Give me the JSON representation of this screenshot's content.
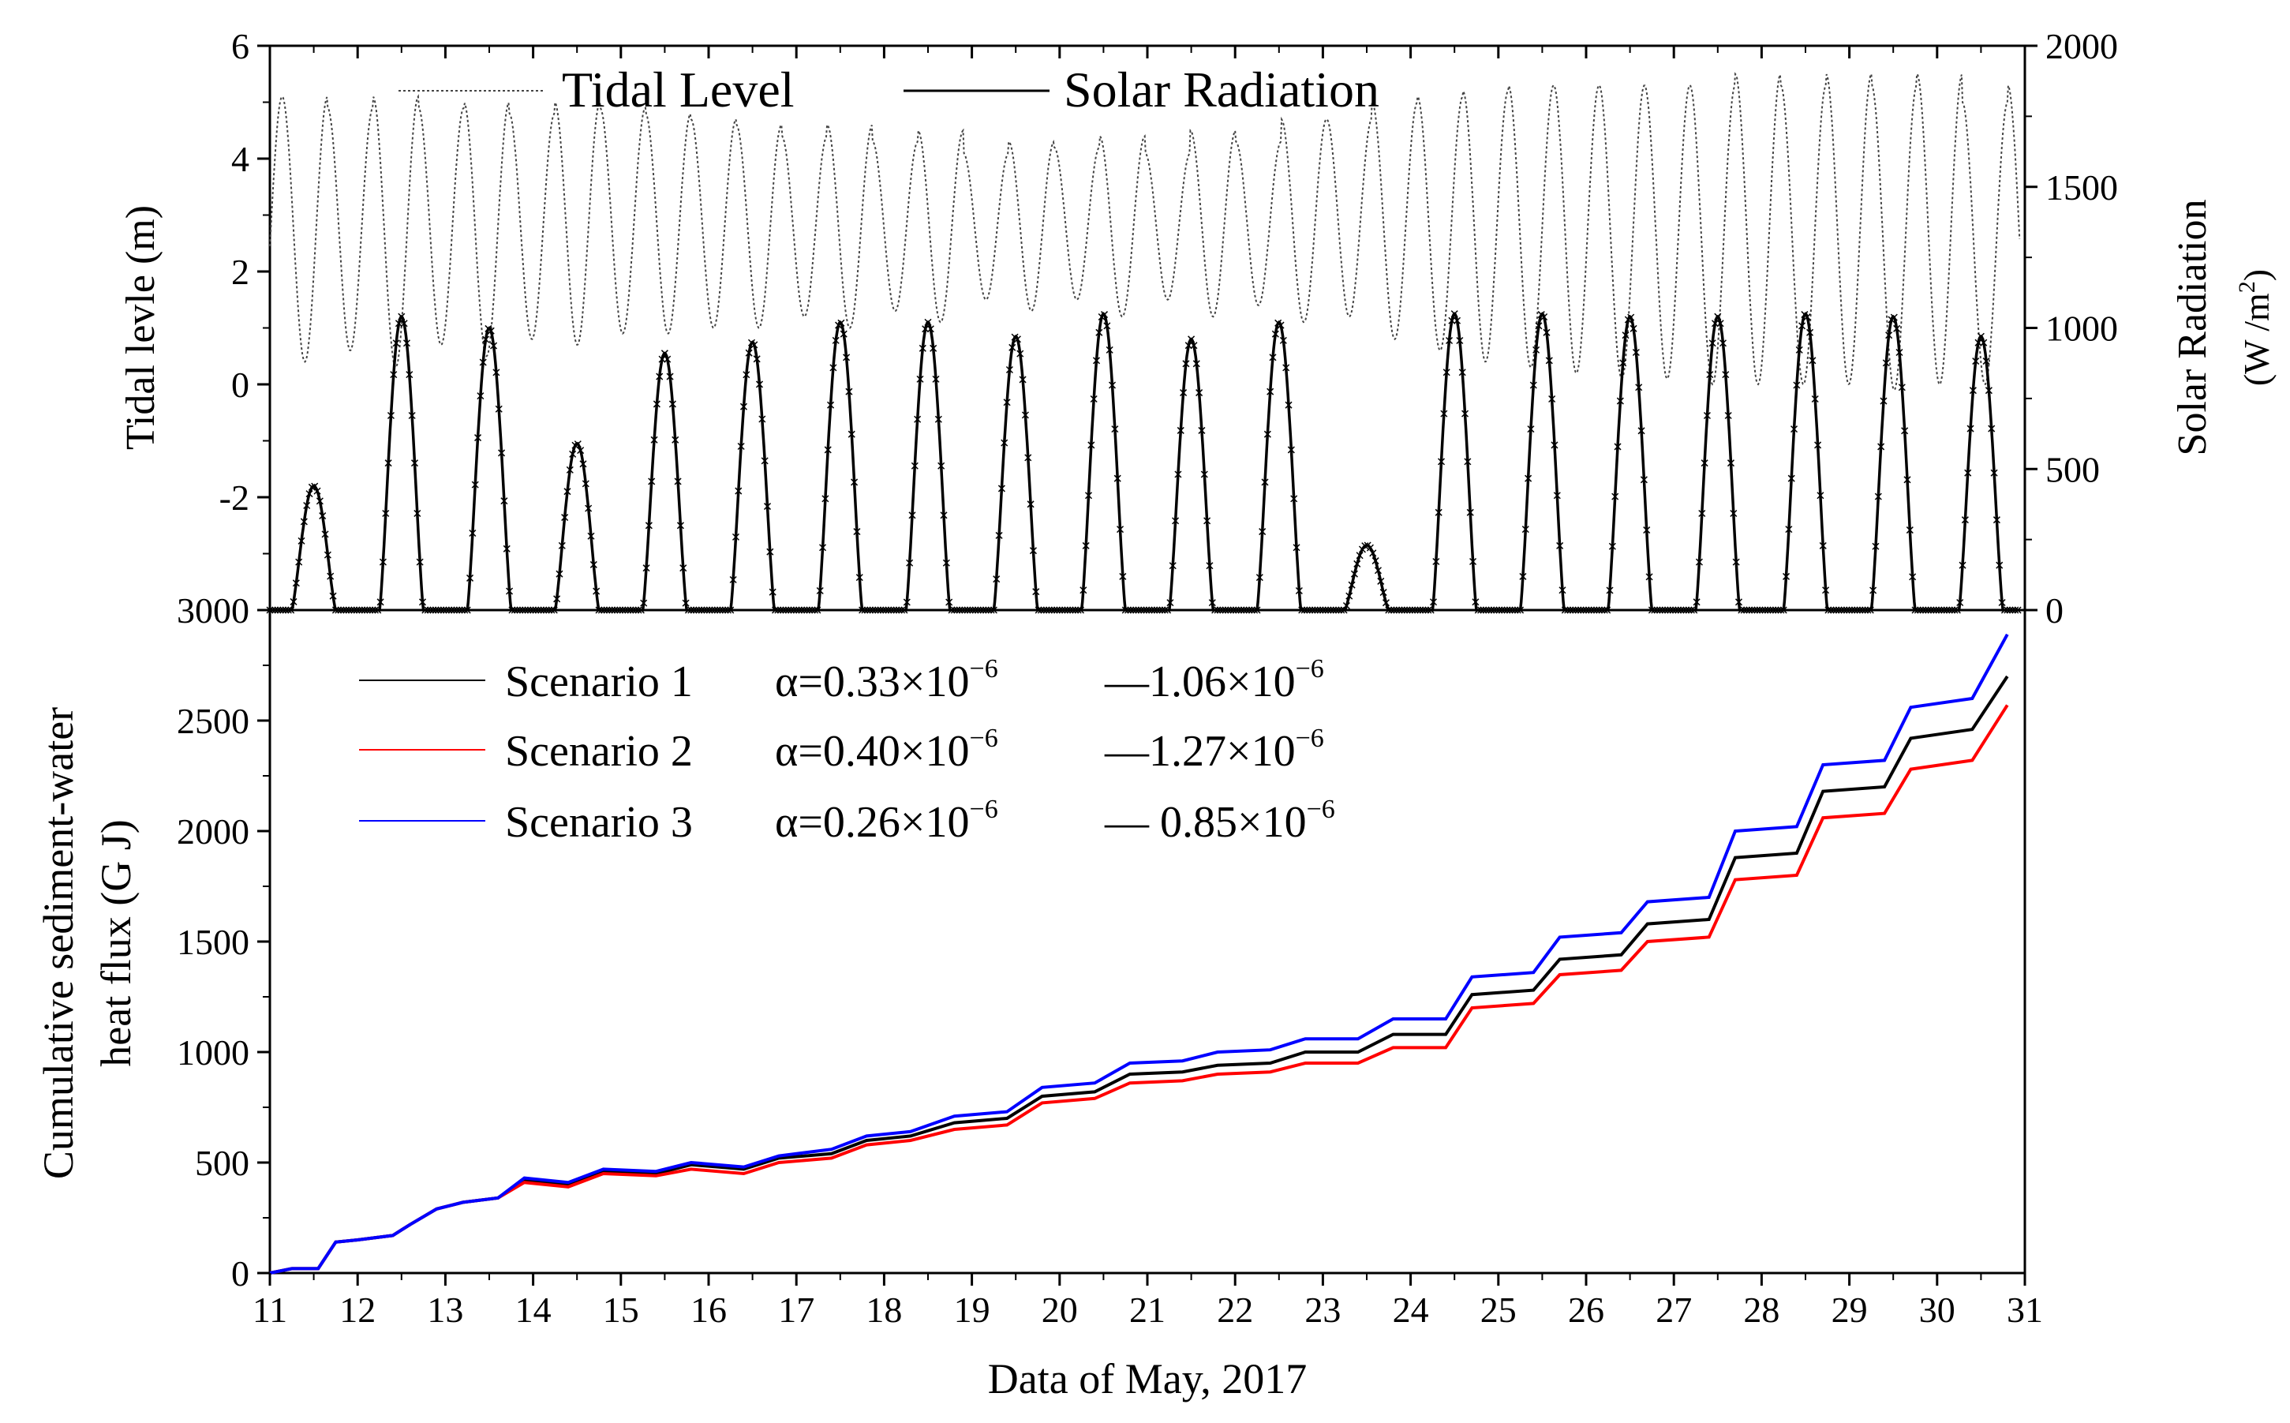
{
  "chart_data": [
    {
      "type": "line",
      "panel": "top",
      "title": "",
      "xlabel": "",
      "ylabel_left": "Tidal levle (m)",
      "ylabel_right": "Solar Radiation",
      "ylabel_right_unit": "(W /m",
      "ylabel_right_unit_exp": "2",
      "ylabel_right_unit_close": ")",
      "xlim": [
        11,
        31
      ],
      "ylim_left": [
        -4,
        6
      ],
      "ylim_right": [
        0,
        2000
      ],
      "yticks_left": [
        0,
        2,
        4,
        6,
        -2
      ],
      "yticks_left_labels": [
        "0",
        "2",
        "4",
        "6",
        "-2"
      ],
      "yticks_right": [
        0,
        500,
        1000,
        1500,
        2000
      ],
      "yticks_right_labels": [
        "0",
        "500",
        "1000",
        "1500",
        "2000"
      ],
      "legend": {
        "placement": "top",
        "entries": [
          "Tidal Level",
          "Solar Radiation"
        ]
      },
      "series": [
        {
          "name": "Tidal Level",
          "axis": "left",
          "style": "dotted",
          "mean_level": 2.7,
          "period_days": 0.5175,
          "high_tides": [
            5.1,
            4.9,
            5.1,
            4.9,
            5.0,
            4.8,
            5.0,
            4.9,
            4.8,
            4.7,
            4.6,
            4.4,
            4.6,
            4.3,
            4.5,
            4.1,
            4.3,
            4.2,
            4.4,
            4.1,
            4.5,
            4.3,
            4.7,
            4.7,
            5.0,
            5.1,
            5.2,
            5.3,
            5.3,
            5.3,
            5.3,
            5.3,
            5.5,
            5.3,
            5.5,
            5.3,
            5.5,
            5.0,
            5.3,
            3.3
          ],
          "low_tides": [
            0.4,
            0.6,
            0.3,
            0.7,
            0.5,
            0.8,
            0.7,
            0.9,
            0.9,
            1.0,
            1.0,
            1.2,
            1.0,
            1.3,
            1.1,
            1.5,
            1.3,
            1.5,
            1.2,
            1.5,
            1.2,
            1.4,
            1.1,
            1.2,
            0.8,
            0.6,
            0.4,
            0.3,
            0.2,
            0.1,
            0.1,
            0.0,
            0.0,
            0.0,
            0.0,
            -0.1,
            0.0,
            0.0,
            0.2,
            0.6
          ]
        },
        {
          "name": "Solar Radiation",
          "axis": "right",
          "style": "solid-with-cross-markers",
          "days": [
            11,
            12,
            13,
            14,
            15,
            16,
            17,
            18,
            19,
            20,
            21,
            22,
            23,
            24,
            25,
            26,
            27,
            28,
            29,
            30
          ],
          "daily_peak_w_m2": [
            440,
            1040,
            1000,
            590,
            910,
            950,
            1020,
            1020,
            970,
            1050,
            960,
            1020,
            230,
            1050,
            1050,
            1040,
            1040,
            1050,
            1040,
            970
          ]
        }
      ]
    },
    {
      "type": "line",
      "panel": "bottom",
      "title": "",
      "xlabel": "Data of May, 2017",
      "ylabel": [
        "Cumulative sediment-water",
        "heat flux (G J)"
      ],
      "xlim": [
        11,
        31
      ],
      "ylim": [
        0,
        3000
      ],
      "xticks": [
        11,
        12,
        13,
        14,
        15,
        16,
        17,
        18,
        19,
        20,
        21,
        22,
        23,
        24,
        25,
        26,
        27,
        28,
        29,
        30,
        31
      ],
      "xtick_labels": [
        "11",
        "12",
        "13",
        "14",
        "15",
        "16",
        "17",
        "18",
        "19",
        "20",
        "21",
        "22",
        "23",
        "24",
        "25",
        "26",
        "27",
        "28",
        "29",
        "30",
        "31"
      ],
      "yticks": [
        0,
        500,
        1000,
        1500,
        2000,
        2500,
        3000
      ],
      "ytick_labels": [
        "0",
        "500",
        "1000",
        "1500",
        "2000",
        "2500",
        "3000"
      ],
      "legend": {
        "placement": "top-left"
      },
      "series": [
        {
          "name": "Scenario 1",
          "color": "#000000",
          "alpha_text": "α=0.33×10",
          "alpha_exp": "−6",
          "dash_text": "—1.06×10",
          "dash_exp": "−6",
          "x": [
            11,
            11.25,
            11.55,
            11.75,
            12,
            12.4,
            12.6,
            12.9,
            13.2,
            13.6,
            13.9,
            14.4,
            14.8,
            15.4,
            15.8,
            16.4,
            16.8,
            17.4,
            17.8,
            18.3,
            18.8,
            19.4,
            19.8,
            20.4,
            20.8,
            21.4,
            21.8,
            22.4,
            22.8,
            23.4,
            23.8,
            24.4,
            24.7,
            25.4,
            25.7,
            26.4,
            26.7,
            27.4,
            27.7,
            28.4,
            28.7,
            29.4,
            29.7,
            30.4,
            30.8
          ],
          "values": [
            0,
            20,
            20,
            140,
            150,
            170,
            220,
            290,
            320,
            340,
            420,
            400,
            460,
            450,
            490,
            470,
            520,
            540,
            600,
            620,
            680,
            700,
            800,
            820,
            900,
            910,
            940,
            950,
            1000,
            1000,
            1080,
            1080,
            1260,
            1280,
            1420,
            1440,
            1580,
            1600,
            1880,
            1900,
            2180,
            2200,
            2420,
            2460,
            2700
          ]
        },
        {
          "name": "Scenario 2",
          "color": "#ff0000",
          "alpha_text": "α=0.40×10",
          "alpha_exp": "−6",
          "dash_text": "—1.27×10",
          "dash_exp": "−6",
          "x": [
            11,
            11.25,
            11.55,
            11.75,
            12,
            12.4,
            12.6,
            12.9,
            13.2,
            13.6,
            13.9,
            14.4,
            14.8,
            15.4,
            15.8,
            16.4,
            16.8,
            17.4,
            17.8,
            18.3,
            18.8,
            19.4,
            19.8,
            20.4,
            20.8,
            21.4,
            21.8,
            22.4,
            22.8,
            23.4,
            23.8,
            24.4,
            24.7,
            25.4,
            25.7,
            26.4,
            26.7,
            27.4,
            27.7,
            28.4,
            28.7,
            29.4,
            29.7,
            30.4,
            30.8
          ],
          "values": [
            0,
            20,
            20,
            140,
            150,
            170,
            220,
            290,
            320,
            340,
            410,
            390,
            450,
            440,
            470,
            450,
            500,
            520,
            580,
            600,
            650,
            670,
            770,
            790,
            860,
            870,
            900,
            910,
            950,
            950,
            1020,
            1020,
            1200,
            1220,
            1350,
            1370,
            1500,
            1520,
            1780,
            1800,
            2060,
            2080,
            2280,
            2320,
            2570
          ]
        },
        {
          "name": "Scenario 3",
          "color": "#0000ff",
          "alpha_text": "α=0.26×10",
          "alpha_exp": "−6",
          "dash_text": "— 0.85×10",
          "dash_exp": "−6",
          "x": [
            11,
            11.25,
            11.55,
            11.75,
            12,
            12.4,
            12.6,
            12.9,
            13.2,
            13.6,
            13.9,
            14.4,
            14.8,
            15.4,
            15.8,
            16.4,
            16.8,
            17.4,
            17.8,
            18.3,
            18.8,
            19.4,
            19.8,
            20.4,
            20.8,
            21.4,
            21.8,
            22.4,
            22.8,
            23.4,
            23.8,
            24.4,
            24.7,
            25.4,
            25.7,
            26.4,
            26.7,
            27.4,
            27.7,
            28.4,
            28.7,
            29.4,
            29.7,
            30.4,
            30.8
          ],
          "values": [
            0,
            20,
            20,
            140,
            150,
            170,
            220,
            290,
            320,
            340,
            430,
            410,
            470,
            460,
            500,
            480,
            530,
            560,
            620,
            640,
            710,
            730,
            840,
            860,
            950,
            960,
            1000,
            1010,
            1060,
            1060,
            1150,
            1150,
            1340,
            1360,
            1520,
            1540,
            1680,
            1700,
            2000,
            2020,
            2300,
            2320,
            2560,
            2600,
            2890
          ]
        }
      ]
    }
  ]
}
